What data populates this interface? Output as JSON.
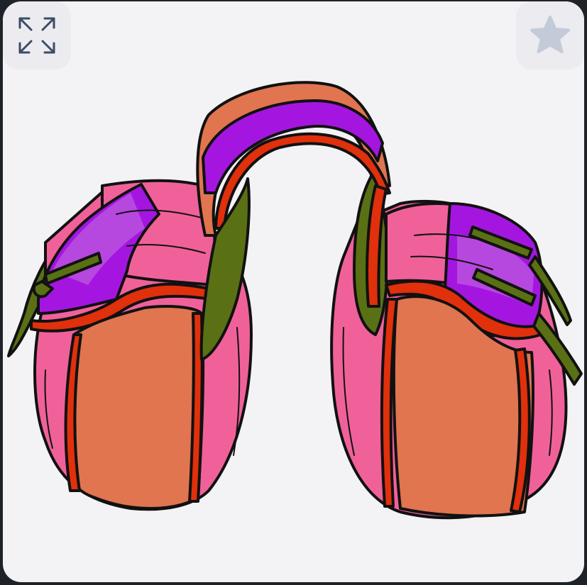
{
  "toolbar": {
    "expand_icon": "expand-icon",
    "favorite_icon": "star-icon"
  },
  "artwork": {
    "subject": "saddle-bags",
    "colors": {
      "pink": "#f0619a",
      "orange": "#e07550",
      "red": "#e0300c",
      "purple": "#a416e0",
      "green": "#5a7014",
      "outline": "#111111",
      "background": "#f3f3f5"
    }
  }
}
